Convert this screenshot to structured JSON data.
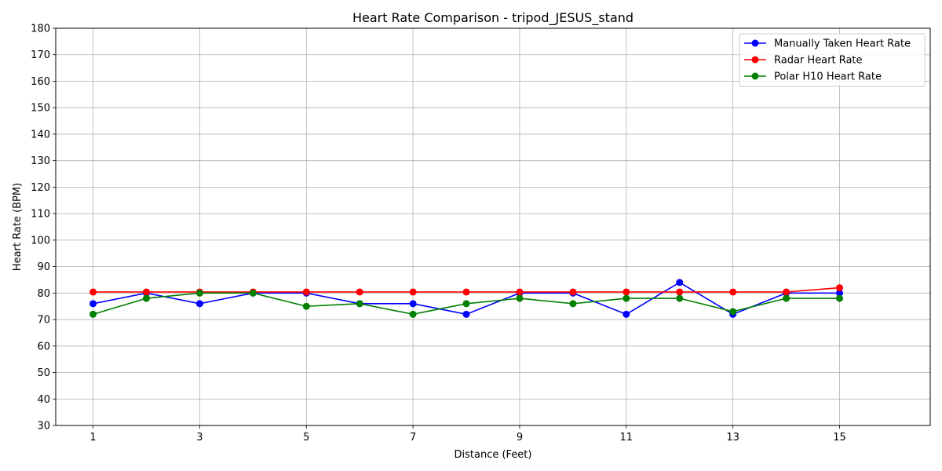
{
  "chart_data": {
    "type": "line",
    "title": "Heart Rate Comparison - tripod_JESUS_stand",
    "xlabel": "Distance (Feet)",
    "ylabel": "Heart Rate (BPM)",
    "xlim": [
      0.3,
      16.7
    ],
    "ylim": [
      30,
      180
    ],
    "xticks": [
      1,
      3,
      5,
      7,
      9,
      11,
      13,
      15
    ],
    "yticks": [
      30,
      40,
      50,
      60,
      70,
      80,
      90,
      100,
      110,
      120,
      130,
      140,
      150,
      160,
      170,
      180
    ],
    "grid": true,
    "legend_position": "top-right",
    "x": [
      1,
      2,
      3,
      4,
      5,
      6,
      7,
      8,
      9,
      10,
      11,
      12,
      13,
      14,
      15
    ],
    "series": [
      {
        "name": "Manually Taken Heart Rate",
        "color": "#0000ff",
        "values": [
          76,
          80,
          76,
          80,
          80,
          76,
          76,
          72,
          80,
          80,
          72,
          84,
          72,
          80,
          80
        ]
      },
      {
        "name": "Radar Heart Rate",
        "color": "#ff0000",
        "values": [
          80.4,
          80.4,
          80.4,
          80.4,
          80.4,
          80.4,
          80.4,
          80.4,
          80.4,
          80.4,
          80.4,
          80.4,
          80.4,
          80.4,
          82
        ]
      },
      {
        "name": "Polar H10 Heart Rate",
        "color": "#008000",
        "values": [
          72,
          78,
          80,
          80,
          75,
          76,
          72,
          76,
          78,
          76,
          78,
          78,
          73,
          78,
          78
        ]
      }
    ]
  }
}
